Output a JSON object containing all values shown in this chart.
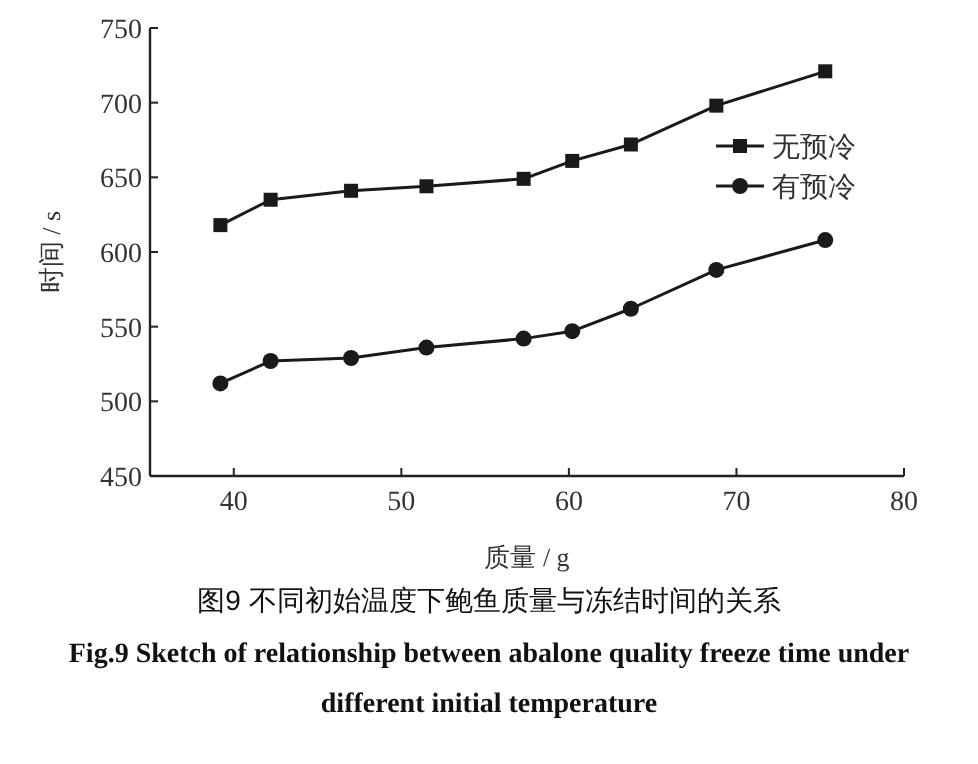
{
  "chart_data": {
    "type": "line",
    "title": "图9  不同初始温度下鲍鱼质量与冻结时间的关系",
    "subtitle": "Fig.9 Sketch of relationship between abalone quality freeze time under different initial temperature",
    "xlabel": "质量 / g",
    "ylabel": "时间 / s",
    "x": [
      39.2,
      42.2,
      47.0,
      51.5,
      57.3,
      60.2,
      63.7,
      68.8,
      75.3
    ],
    "series": [
      {
        "name": "无预冷",
        "color": "#1a1a1a",
        "marker": "square",
        "values": [
          618,
          635,
          641,
          644,
          649,
          661,
          672,
          698,
          721
        ]
      },
      {
        "name": "有预冷",
        "color": "#1a1a1a",
        "marker": "circle",
        "values": [
          512,
          527,
          529,
          536,
          542,
          547,
          562,
          588,
          608
        ]
      }
    ],
    "xlim": [
      35,
      80
    ],
    "xticks": [
      40,
      50,
      60,
      70,
      80
    ],
    "ylim": [
      450,
      750
    ],
    "yticks": [
      450,
      500,
      550,
      600,
      650,
      700,
      750
    ],
    "grid": false,
    "legend": "right",
    "line_style": "solid"
  }
}
